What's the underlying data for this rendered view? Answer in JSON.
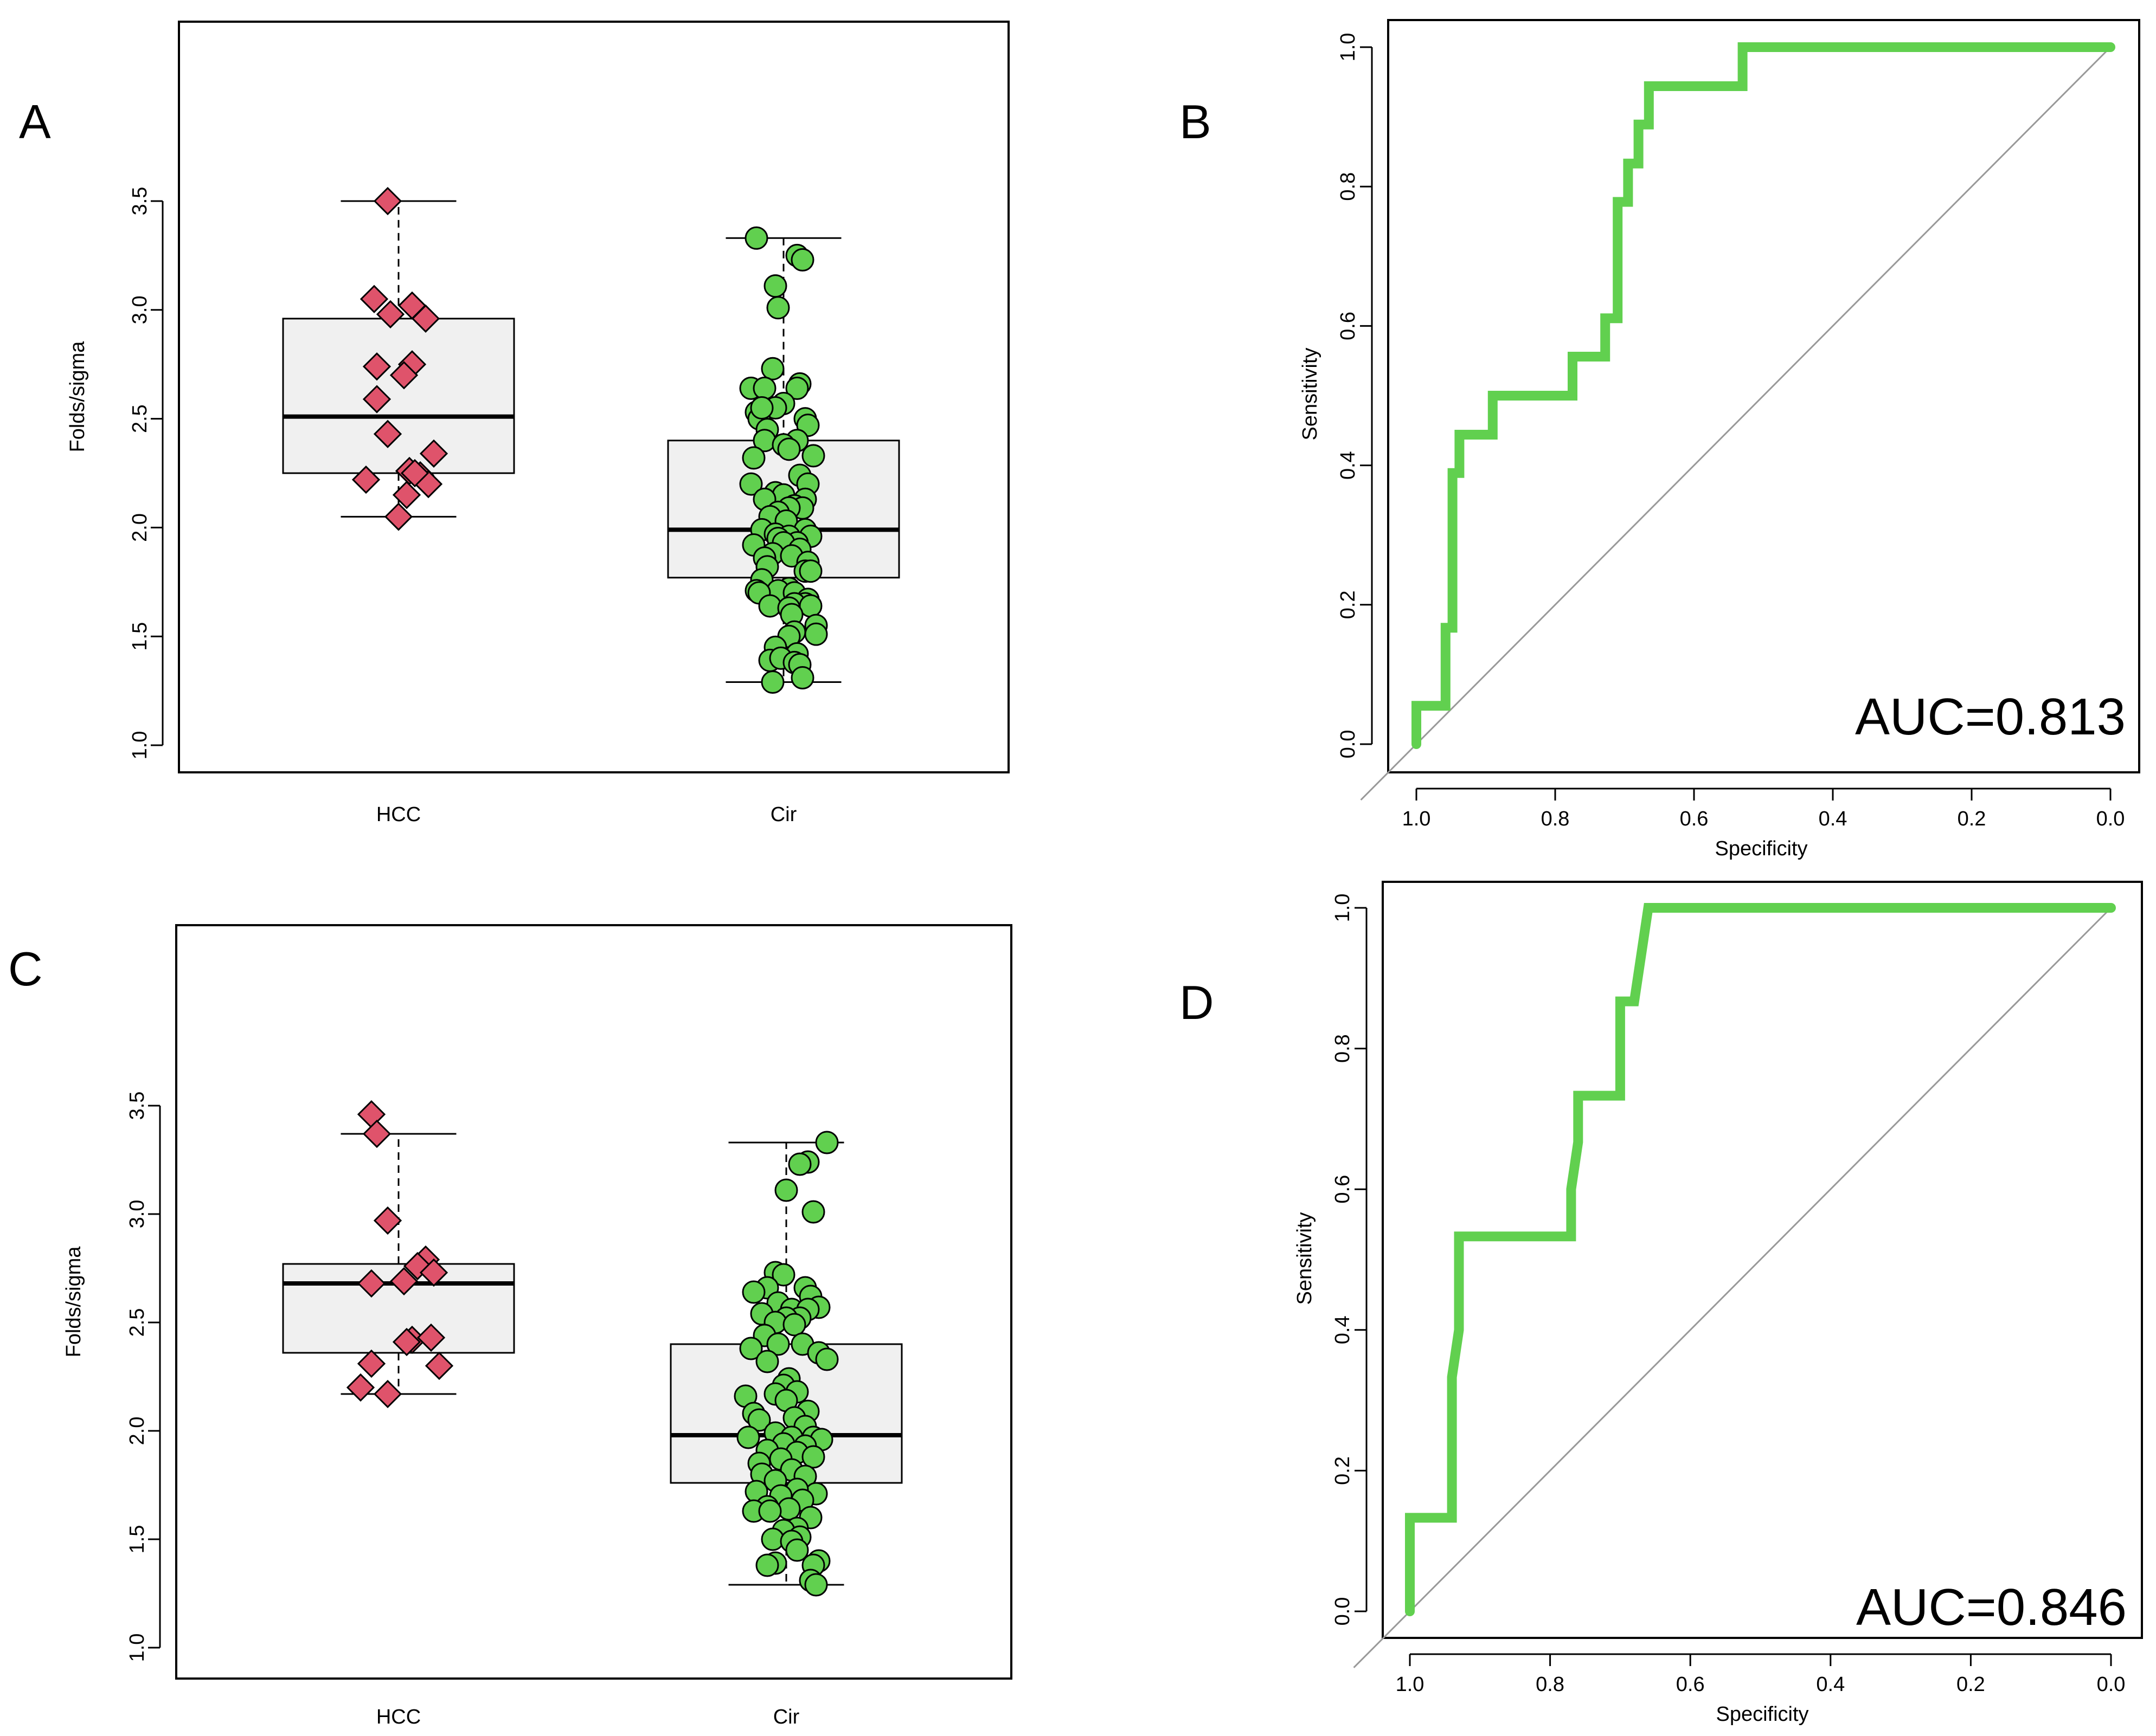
{
  "colors": {
    "hcc_point": "#df536b",
    "cir_point": "#61d04f",
    "roc_line": "#61d04f",
    "box_fill": "#f0f0f0",
    "diagonal": "#999999",
    "axis": "#000000"
  },
  "chart_data": [
    {
      "type": "box",
      "panel_label": "A",
      "title": "",
      "xlabel": "",
      "ylabel": "Folds/sigma",
      "ylim": [
        1.0,
        3.5
      ],
      "yticks": [
        "1.0",
        "1.5",
        "2.0",
        "2.5",
        "3.0",
        "3.5"
      ],
      "categories": [
        "HCC",
        "Cir"
      ],
      "boxes": [
        {
          "name": "HCC",
          "whisker_low": 2.05,
          "q1": 2.25,
          "median": 2.51,
          "q3": 2.96,
          "whisker_high": 3.5,
          "marker": "diamond",
          "points": [
            [
              -0.04,
              3.5
            ],
            [
              -0.09,
              3.05
            ],
            [
              -0.03,
              2.98
            ],
            [
              0.05,
              3.02
            ],
            [
              0.1,
              2.96
            ],
            [
              -0.08,
              2.74
            ],
            [
              0.05,
              2.75
            ],
            [
              0.02,
              2.7
            ],
            [
              -0.08,
              2.59
            ],
            [
              -0.04,
              2.43
            ],
            [
              0.13,
              2.34
            ],
            [
              0.04,
              2.26
            ],
            [
              0.08,
              2.24
            ],
            [
              0.11,
              2.2
            ],
            [
              -0.12,
              2.22
            ],
            [
              0.03,
              2.15
            ],
            [
              0.0,
              2.05
            ],
            [
              0.06,
              2.25
            ]
          ]
        },
        {
          "name": "Cir",
          "whisker_low": 1.29,
          "q1": 1.77,
          "median": 1.99,
          "q3": 2.4,
          "whisker_high": 3.33,
          "marker": "circle",
          "points": [
            [
              -0.1,
              3.33
            ],
            [
              0.05,
              3.25
            ],
            [
              0.07,
              3.23
            ],
            [
              -0.03,
              3.11
            ],
            [
              -0.02,
              3.01
            ],
            [
              -0.04,
              2.73
            ],
            [
              0.06,
              2.66
            ],
            [
              0.05,
              2.64
            ],
            [
              -0.12,
              2.64
            ],
            [
              -0.07,
              2.64
            ],
            [
              0.0,
              2.57
            ],
            [
              -0.03,
              2.55
            ],
            [
              -0.1,
              2.53
            ],
            [
              0.08,
              2.5
            ],
            [
              -0.09,
              2.5
            ],
            [
              -0.08,
              2.55
            ],
            [
              0.09,
              2.47
            ],
            [
              -0.06,
              2.45
            ],
            [
              0.05,
              2.4
            ],
            [
              -0.07,
              2.4
            ],
            [
              0.0,
              2.38
            ],
            [
              0.02,
              2.36
            ],
            [
              0.11,
              2.33
            ],
            [
              -0.11,
              2.32
            ],
            [
              0.06,
              2.24
            ],
            [
              0.09,
              2.2
            ],
            [
              -0.12,
              2.2
            ],
            [
              -0.03,
              2.16
            ],
            [
              0.0,
              2.15
            ],
            [
              0.08,
              2.13
            ],
            [
              -0.07,
              2.13
            ],
            [
              0.04,
              2.1
            ],
            [
              0.07,
              2.09
            ],
            [
              0.02,
              2.09
            ],
            [
              -0.02,
              2.07
            ],
            [
              -0.05,
              2.05
            ],
            [
              0.01,
              2.03
            ],
            [
              0.08,
              1.99
            ],
            [
              -0.08,
              1.99
            ],
            [
              -0.03,
              1.97
            ],
            [
              0.02,
              1.96
            ],
            [
              0.1,
              1.96
            ],
            [
              -0.02,
              1.95
            ],
            [
              0.05,
              1.93
            ],
            [
              -0.11,
              1.92
            ],
            [
              0.0,
              1.93
            ],
            [
              0.06,
              1.9
            ],
            [
              -0.04,
              1.88
            ],
            [
              0.03,
              1.87
            ],
            [
              -0.07,
              1.86
            ],
            [
              0.09,
              1.84
            ],
            [
              -0.06,
              1.82
            ],
            [
              0.08,
              1.8
            ],
            [
              0.1,
              1.8
            ],
            [
              -0.08,
              1.76
            ],
            [
              0.02,
              1.72
            ],
            [
              -0.02,
              1.71
            ],
            [
              -0.1,
              1.71
            ],
            [
              0.04,
              1.7
            ],
            [
              -0.09,
              1.7
            ],
            [
              0.09,
              1.67
            ],
            [
              0.08,
              1.65
            ],
            [
              0.04,
              1.65
            ],
            [
              0.1,
              1.64
            ],
            [
              -0.05,
              1.64
            ],
            [
              0.02,
              1.63
            ],
            [
              0.03,
              1.6
            ],
            [
              0.12,
              1.55
            ],
            [
              0.04,
              1.52
            ],
            [
              0.12,
              1.51
            ],
            [
              0.02,
              1.5
            ],
            [
              -0.03,
              1.45
            ],
            [
              0.05,
              1.42
            ],
            [
              -0.05,
              1.39
            ],
            [
              -0.01,
              1.4
            ],
            [
              0.04,
              1.38
            ],
            [
              0.06,
              1.37
            ],
            [
              0.07,
              1.31
            ],
            [
              -0.04,
              1.29
            ]
          ]
        }
      ]
    },
    {
      "type": "line",
      "panel_label": "B",
      "title": "",
      "xlabel": "Specificity",
      "ylabel": "Sensitivity",
      "xlim": [
        1.0,
        0.0
      ],
      "ylim": [
        0.0,
        1.0
      ],
      "xticks": [
        "1.0",
        "0.8",
        "0.6",
        "0.4",
        "0.2",
        "0.0"
      ],
      "yticks": [
        "0.0",
        "0.2",
        "0.4",
        "0.6",
        "0.8",
        "1.0"
      ],
      "auc_label": "AUC=0.813",
      "diagonal": true,
      "series": [
        {
          "name": "ROC",
          "x": [
            1.0,
            1.0,
            0.958,
            0.958,
            0.948,
            0.948,
            0.938,
            0.938,
            0.89,
            0.89,
            0.775,
            0.775,
            0.728,
            0.728,
            0.71,
            0.71,
            0.695,
            0.695,
            0.68,
            0.68,
            0.665,
            0.665,
            0.64,
            0.64,
            0.53,
            0.53,
            0.0
          ],
          "y": [
            0.0,
            0.055,
            0.055,
            0.167,
            0.167,
            0.389,
            0.389,
            0.444,
            0.444,
            0.5,
            0.5,
            0.556,
            0.556,
            0.611,
            0.611,
            0.778,
            0.778,
            0.833,
            0.833,
            0.889,
            0.889,
            0.944,
            0.944,
            0.944,
            0.944,
            1.0,
            1.0
          ]
        }
      ]
    },
    {
      "type": "box",
      "panel_label": "C",
      "title": "",
      "xlabel": "",
      "ylabel": "Folds/sigma",
      "ylim": [
        1.0,
        3.5
      ],
      "yticks": [
        "1.0",
        "1.5",
        "2.0",
        "2.5",
        "3.0",
        "3.5"
      ],
      "categories": [
        "HCC",
        "Cir"
      ],
      "boxes": [
        {
          "name": "HCC",
          "whisker_low": 2.17,
          "q1": 2.36,
          "median": 2.68,
          "q3": 2.77,
          "whisker_high": 3.37,
          "marker": "diamond",
          "points": [
            [
              -0.1,
              3.46
            ],
            [
              -0.08,
              3.37
            ],
            [
              -0.04,
              2.97
            ],
            [
              0.1,
              2.79
            ],
            [
              0.07,
              2.76
            ],
            [
              0.13,
              2.73
            ],
            [
              -0.1,
              2.68
            ],
            [
              0.02,
              2.69
            ],
            [
              0.05,
              2.42
            ],
            [
              0.12,
              2.43
            ],
            [
              0.03,
              2.41
            ],
            [
              -0.1,
              2.31
            ],
            [
              0.15,
              2.3
            ],
            [
              -0.14,
              2.2
            ],
            [
              -0.04,
              2.17
            ]
          ]
        },
        {
          "name": "Cir",
          "whisker_low": 1.29,
          "q1": 1.76,
          "median": 1.98,
          "q3": 2.4,
          "whisker_high": 3.33,
          "marker": "circle",
          "points": [
            [
              0.15,
              3.33
            ],
            [
              0.08,
              3.24
            ],
            [
              0.05,
              3.23
            ],
            [
              0.0,
              3.11
            ],
            [
              0.1,
              3.01
            ],
            [
              -0.04,
              2.73
            ],
            [
              -0.01,
              2.72
            ],
            [
              -0.07,
              2.66
            ],
            [
              0.07,
              2.66
            ],
            [
              -0.12,
              2.64
            ],
            [
              0.09,
              2.62
            ],
            [
              -0.03,
              2.59
            ],
            [
              0.12,
              2.57
            ],
            [
              0.02,
              2.56
            ],
            [
              0.08,
              2.56
            ],
            [
              -0.09,
              2.54
            ],
            [
              0.05,
              2.52
            ],
            [
              0.0,
              2.52
            ],
            [
              -0.04,
              2.5
            ],
            [
              0.03,
              2.49
            ],
            [
              -0.08,
              2.44
            ],
            [
              -0.03,
              2.4
            ],
            [
              0.06,
              2.4
            ],
            [
              -0.13,
              2.38
            ],
            [
              0.12,
              2.36
            ],
            [
              0.15,
              2.33
            ],
            [
              -0.07,
              2.32
            ],
            [
              0.01,
              2.24
            ],
            [
              -0.01,
              2.21
            ],
            [
              0.04,
              2.18
            ],
            [
              -0.04,
              2.17
            ],
            [
              -0.15,
              2.16
            ],
            [
              0.0,
              2.14
            ],
            [
              0.08,
              2.09
            ],
            [
              -0.12,
              2.08
            ],
            [
              0.03,
              2.06
            ],
            [
              -0.1,
              2.05
            ],
            [
              0.07,
              2.02
            ],
            [
              -0.04,
              1.99
            ],
            [
              0.02,
              1.97
            ],
            [
              -0.14,
              1.97
            ],
            [
              0.1,
              1.97
            ],
            [
              0.13,
              1.96
            ],
            [
              -0.01,
              1.94
            ],
            [
              0.07,
              1.93
            ],
            [
              -0.07,
              1.91
            ],
            [
              0.04,
              1.9
            ],
            [
              0.1,
              1.88
            ],
            [
              -0.02,
              1.87
            ],
            [
              -0.1,
              1.85
            ],
            [
              0.02,
              1.82
            ],
            [
              -0.09,
              1.8
            ],
            [
              0.07,
              1.79
            ],
            [
              -0.04,
              1.77
            ],
            [
              0.11,
              1.71
            ],
            [
              -0.11,
              1.72
            ],
            [
              0.04,
              1.73
            ],
            [
              -0.02,
              1.7
            ],
            [
              0.06,
              1.68
            ],
            [
              -0.07,
              1.65
            ],
            [
              0.01,
              1.64
            ],
            [
              -0.12,
              1.63
            ],
            [
              -0.06,
              1.63
            ],
            [
              0.09,
              1.6
            ],
            [
              0.04,
              1.55
            ],
            [
              -0.01,
              1.54
            ],
            [
              0.05,
              1.51
            ],
            [
              -0.05,
              1.5
            ],
            [
              0.02,
              1.49
            ],
            [
              0.04,
              1.45
            ],
            [
              0.12,
              1.4
            ],
            [
              0.1,
              1.38
            ],
            [
              -0.04,
              1.39
            ],
            [
              -0.07,
              1.38
            ],
            [
              0.09,
              1.31
            ],
            [
              0.11,
              1.29
            ]
          ]
        }
      ]
    },
    {
      "type": "line",
      "panel_label": "D",
      "title": "",
      "xlabel": "Specificity",
      "ylabel": "Sensitivity",
      "xlim": [
        1.0,
        0.0
      ],
      "ylim": [
        0.0,
        1.0
      ],
      "xticks": [
        "1.0",
        "0.8",
        "0.6",
        "0.4",
        "0.2",
        "0.0"
      ],
      "yticks": [
        "0.0",
        "0.2",
        "0.4",
        "0.6",
        "0.8",
        "1.0"
      ],
      "auc_label": "AUC=0.846",
      "diagonal": true,
      "series": [
        {
          "name": "ROC",
          "x": [
            1.0,
            1.0,
            0.94,
            0.94,
            0.93,
            0.93,
            0.77,
            0.77,
            0.76,
            0.76,
            0.7,
            0.7,
            0.68,
            0.66,
            0.0
          ],
          "y": [
            0.0,
            0.133,
            0.133,
            0.333,
            0.4,
            0.533,
            0.533,
            0.6,
            0.667,
            0.733,
            0.733,
            0.867,
            0.867,
            1.0,
            1.0
          ]
        }
      ]
    }
  ]
}
